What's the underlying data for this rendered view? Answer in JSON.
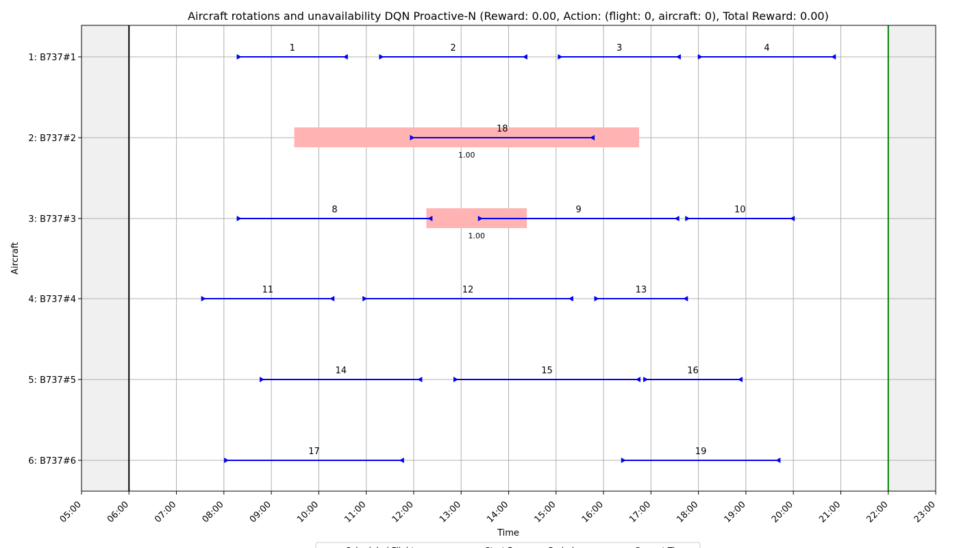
{
  "chart_data": {
    "type": "gantt",
    "title": "Aircraft rotations and unavailability DQN Proactive-N (Reward: 0.00, Action: (flight: 0, aircraft: 0), Total Reward: 0.00)",
    "xlabel": "Time",
    "ylabel": "Aircraft",
    "x_ticks": [
      "05:00",
      "06:00",
      "07:00",
      "08:00",
      "09:00",
      "10:00",
      "11:00",
      "12:00",
      "13:00",
      "14:00",
      "15:00",
      "16:00",
      "17:00",
      "18:00",
      "19:00",
      "20:00",
      "21:00",
      "22:00",
      "23:00"
    ],
    "xlim": [
      "05:00",
      "23:00"
    ],
    "aircraft": [
      "1: B737#1",
      "2: B737#2",
      "3: B737#3",
      "4: B737#4",
      "5: B737#5",
      "6: B737#6"
    ],
    "window_start": "06:00",
    "window_end": "22:00",
    "current_time": "06:00",
    "grid": true,
    "colors": {
      "flight": "#0000ee",
      "unavailability": "#ffb3b3",
      "outside_window": "#f0f0f0",
      "current_time": "#000000",
      "window_end": "#008000",
      "grid": "#b0b0b0"
    },
    "flights": [
      {
        "id": "1",
        "aircraft": 0,
        "dep": "08:18",
        "arr": "10:35"
      },
      {
        "id": "2",
        "aircraft": 0,
        "dep": "11:18",
        "arr": "14:22"
      },
      {
        "id": "3",
        "aircraft": 0,
        "dep": "15:04",
        "arr": "17:36"
      },
      {
        "id": "4",
        "aircraft": 0,
        "dep": "18:01",
        "arr": "20:52"
      },
      {
        "id": "18",
        "aircraft": 1,
        "dep": "11:57",
        "arr": "15:47"
      },
      {
        "id": "8",
        "aircraft": 2,
        "dep": "08:18",
        "arr": "12:22"
      },
      {
        "id": "9",
        "aircraft": 2,
        "dep": "13:23",
        "arr": "17:34"
      },
      {
        "id": "10",
        "aircraft": 2,
        "dep": "17:45",
        "arr": "20:00"
      },
      {
        "id": "11",
        "aircraft": 3,
        "dep": "07:33",
        "arr": "10:18"
      },
      {
        "id": "12",
        "aircraft": 3,
        "dep": "10:57",
        "arr": "15:20"
      },
      {
        "id": "13",
        "aircraft": 3,
        "dep": "15:50",
        "arr": "17:45"
      },
      {
        "id": "14",
        "aircraft": 4,
        "dep": "08:47",
        "arr": "12:09"
      },
      {
        "id": "15",
        "aircraft": 4,
        "dep": "12:52",
        "arr": "16:45"
      },
      {
        "id": "16",
        "aircraft": 4,
        "dep": "16:52",
        "arr": "18:54"
      },
      {
        "id": "17",
        "aircraft": 5,
        "dep": "08:02",
        "arr": "11:46"
      },
      {
        "id": "19",
        "aircraft": 5,
        "dep": "16:24",
        "arr": "19:42"
      }
    ],
    "unavailabilities": [
      {
        "aircraft": 1,
        "start": "09:29",
        "end": "16:45",
        "probability": "1.00"
      },
      {
        "aircraft": 2,
        "start": "12:16",
        "end": "14:23",
        "probability": "1.00"
      }
    ],
    "legend": {
      "placement": "bottom-center",
      "entries": [
        "Scheduled Flight",
        "Start Recovery Period",
        "Current Time"
      ]
    }
  }
}
